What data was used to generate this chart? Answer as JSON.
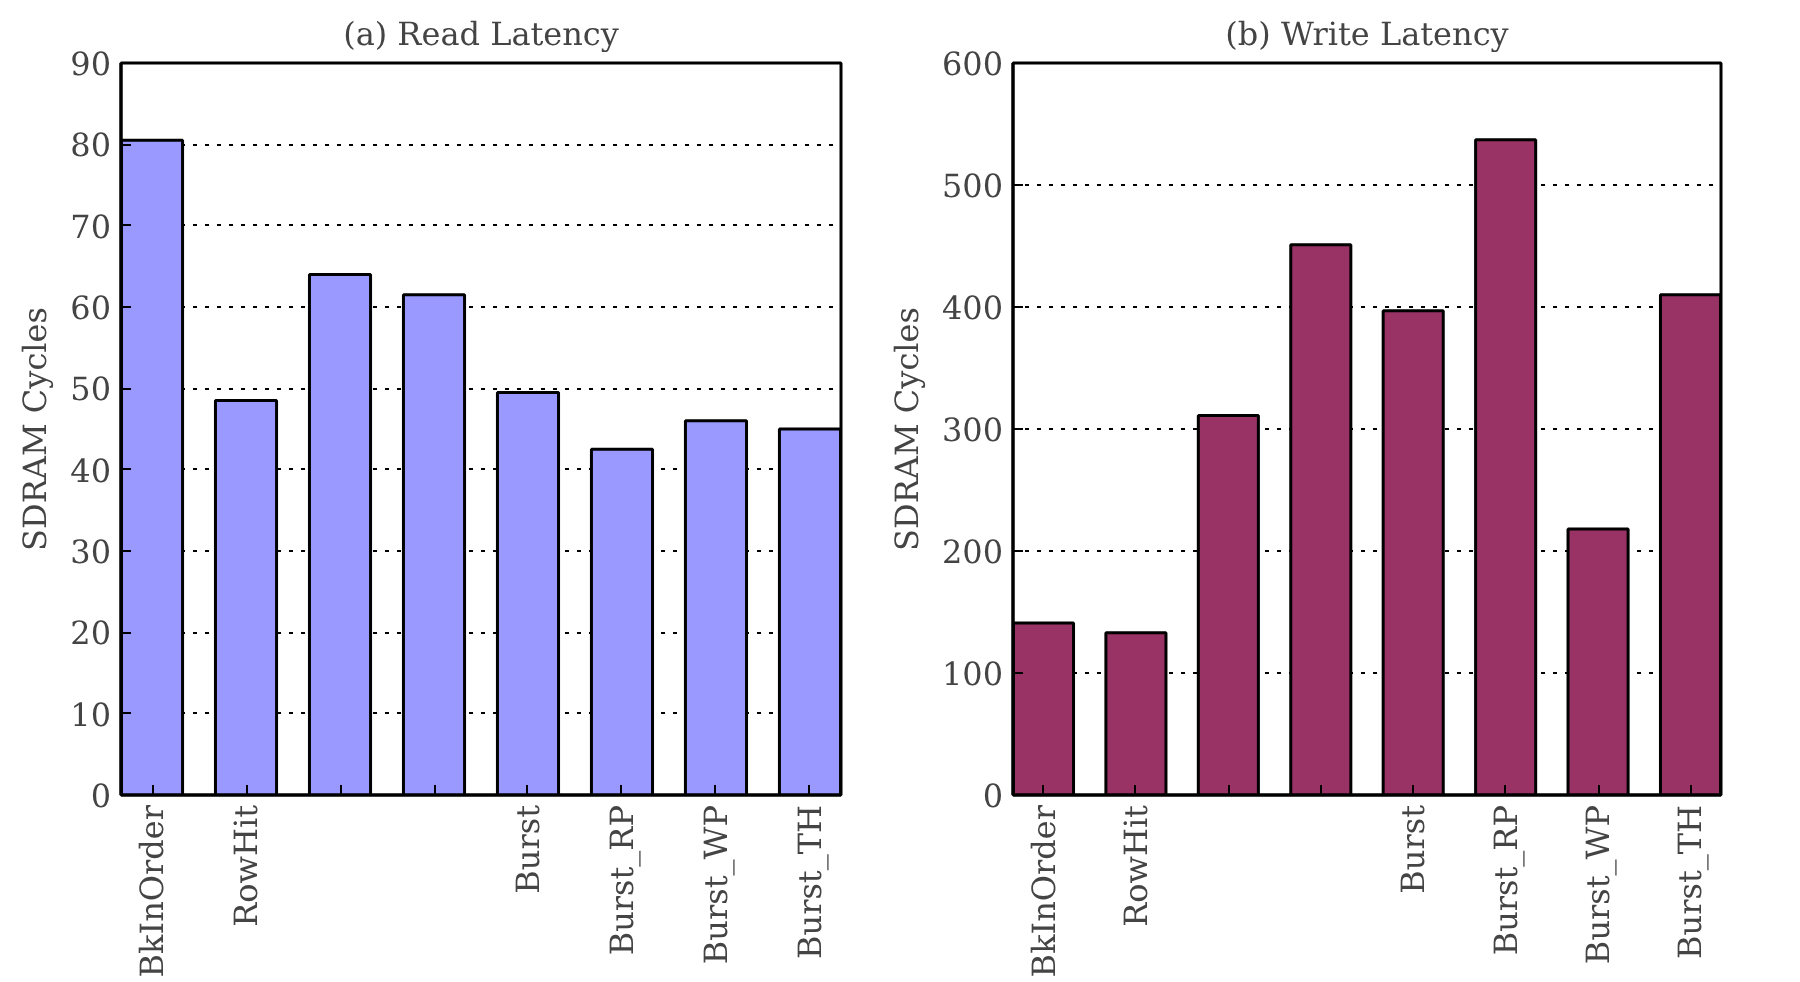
{
  "chart_data": [
    {
      "type": "bar",
      "title": "(a) Read Latency",
      "ylabel": "SDRAM Cycles",
      "categories": [
        "BkInOrder",
        "RowHit",
        null,
        null,
        "Burst",
        "Burst_RP",
        "Burst_WP",
        "Burst_TH"
      ],
      "values": [
        80.5,
        48.5,
        64,
        61.5,
        49.5,
        42.5,
        46,
        45
      ],
      "color": "#9999ff",
      "ylim": [
        0,
        90
      ],
      "yticks": [
        0,
        10,
        20,
        30,
        40,
        50,
        60,
        70,
        80,
        90
      ],
      "grid": "y"
    },
    {
      "type": "bar",
      "title": "(b) Write Latency",
      "ylabel": "SDRAM Cycles",
      "categories": [
        "BkInOrder",
        "RowHit",
        null,
        null,
        "Burst",
        "Burst_RP",
        "Burst_WP",
        "Burst_TH"
      ],
      "values": [
        141,
        133,
        311,
        451,
        397,
        537,
        218,
        410
      ],
      "color": "#993366",
      "ylim": [
        0,
        600
      ],
      "yticks": [
        0,
        100,
        200,
        300,
        400,
        500,
        600
      ],
      "grid": "y"
    }
  ]
}
